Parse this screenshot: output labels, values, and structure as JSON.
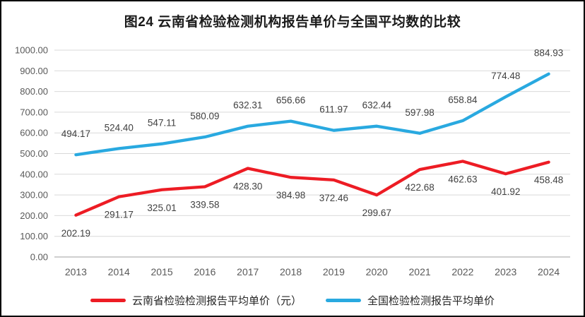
{
  "chart_data": {
    "type": "line",
    "title": "图24 云南省检验检测机构报告单价与全国平均数的比较",
    "categories": [
      "2013",
      "2014",
      "2015",
      "2016",
      "2017",
      "2018",
      "2019",
      "2020",
      "2021",
      "2022",
      "2023",
      "2024"
    ],
    "series": [
      {
        "key": "yunnan",
        "name": "云南省检验检测报告平均单价（元）",
        "color": "#ED1C24",
        "label_position": "below",
        "values": [
          202.19,
          291.17,
          325.01,
          339.58,
          428.3,
          384.98,
          372.46,
          299.67,
          422.68,
          462.63,
          401.92,
          458.48
        ]
      },
      {
        "key": "national",
        "name": "全国检验检测报告平均单价",
        "color": "#29A9E0",
        "label_position": "above",
        "values": [
          494.17,
          524.4,
          547.11,
          580.09,
          632.31,
          656.66,
          611.97,
          632.44,
          597.98,
          658.84,
          774.48,
          884.93
        ]
      }
    ],
    "xlabel": "",
    "ylabel": "",
    "ylim": [
      0,
      1000
    ],
    "ytick_step": 100,
    "ytick_labels": [
      "0.00",
      "100.00",
      "200.00",
      "300.00",
      "400.00",
      "500.00",
      "600.00",
      "700.00",
      "800.00",
      "900.00",
      "1000.00"
    ],
    "grid": true,
    "legend_position": "bottom",
    "colors": {
      "grid": "#D9D9D9",
      "axis": "#BFBFBF",
      "tick_text": "#595959",
      "label_text": "#404040",
      "title_text": "#1a1a1a"
    }
  }
}
